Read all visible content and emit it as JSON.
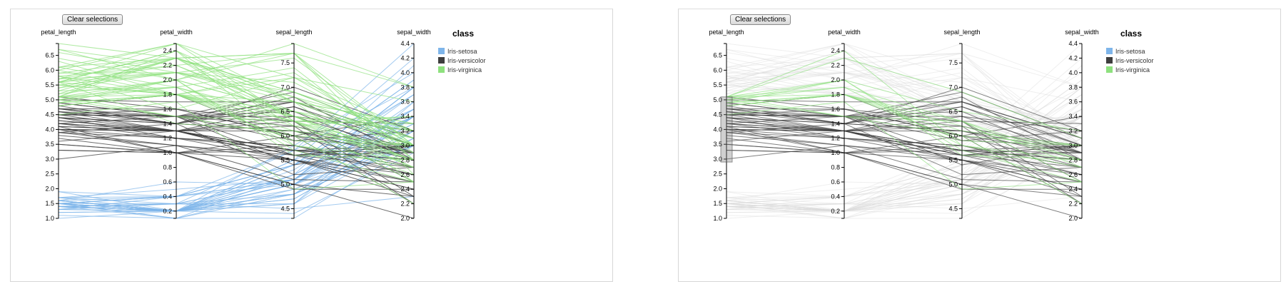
{
  "button_label": "Clear selections",
  "chart_data": [
    {
      "type": "parallel-coordinates",
      "dimensions": [
        {
          "name": "petal_length",
          "domain": [
            1.0,
            6.9
          ],
          "ticks": [
            1.0,
            1.5,
            2.0,
            2.5,
            3.0,
            3.5,
            4.0,
            4.5,
            5.0,
            5.5,
            6.0,
            6.5
          ]
        },
        {
          "name": "petal_width",
          "domain": [
            0.1,
            2.5
          ],
          "ticks": [
            0.2,
            0.4,
            0.6,
            0.8,
            1.0,
            1.2,
            1.4,
            1.6,
            1.8,
            2.0,
            2.2,
            2.4
          ]
        },
        {
          "name": "sepal_length",
          "domain": [
            4.3,
            7.9
          ],
          "ticks": [
            4.5,
            5.0,
            5.5,
            6.0,
            6.5,
            7.0,
            7.5
          ]
        },
        {
          "name": "sepal_width",
          "domain": [
            2.0,
            4.4
          ],
          "ticks": [
            2.0,
            2.2,
            2.4,
            2.6,
            2.8,
            3.0,
            3.2,
            3.4,
            3.6,
            3.8,
            4.0,
            4.2,
            4.4
          ]
        }
      ],
      "legend": {
        "title": "class",
        "placement": "top-right",
        "entries": [
          {
            "name": "Iris-setosa",
            "color": "#7eb5ea"
          },
          {
            "name": "Iris-versicolor",
            "color": "#3e3e3e"
          },
          {
            "name": "Iris-virginica",
            "color": "#8ee17e"
          }
        ]
      },
      "brush": null
    },
    {
      "type": "parallel-coordinates",
      "dimensions": [
        {
          "name": "petal_length",
          "domain": [
            1.0,
            6.9
          ],
          "ticks": [
            1.0,
            1.5,
            2.0,
            2.5,
            3.0,
            3.5,
            4.0,
            4.5,
            5.0,
            5.5,
            6.0,
            6.5
          ]
        },
        {
          "name": "petal_width",
          "domain": [
            0.1,
            2.5
          ],
          "ticks": [
            0.2,
            0.4,
            0.6,
            0.8,
            1.0,
            1.2,
            1.4,
            1.6,
            1.8,
            2.0,
            2.2,
            2.4
          ]
        },
        {
          "name": "sepal_length",
          "domain": [
            4.3,
            7.9
          ],
          "ticks": [
            4.5,
            5.0,
            5.5,
            6.0,
            6.5,
            7.0,
            7.5
          ]
        },
        {
          "name": "sepal_width",
          "domain": [
            2.0,
            4.4
          ],
          "ticks": [
            2.0,
            2.2,
            2.4,
            2.6,
            2.8,
            3.0,
            3.2,
            3.4,
            3.6,
            3.8,
            4.0,
            4.2,
            4.4
          ]
        }
      ],
      "legend": {
        "title": "class",
        "placement": "top-right",
        "entries": [
          {
            "name": "Iris-setosa",
            "color": "#7eb5ea"
          },
          {
            "name": "Iris-versicolor",
            "color": "#3e3e3e"
          },
          {
            "name": "Iris-virginica",
            "color": "#8ee17e"
          }
        ]
      },
      "brush": {
        "dimension": "petal_length",
        "range": [
          2.9,
          5.1
        ]
      }
    }
  ],
  "records": [
    {
      "class": "Iris-setosa",
      "v": [
        [
          1.4,
          0.2,
          5.1,
          3.5
        ],
        [
          1.4,
          0.2,
          4.9,
          3.0
        ],
        [
          1.3,
          0.2,
          4.7,
          3.2
        ],
        [
          1.5,
          0.2,
          4.6,
          3.1
        ],
        [
          1.4,
          0.2,
          5.0,
          3.6
        ],
        [
          1.7,
          0.4,
          5.4,
          3.9
        ],
        [
          1.4,
          0.3,
          4.6,
          3.4
        ],
        [
          1.5,
          0.2,
          5.0,
          3.4
        ],
        [
          1.4,
          0.2,
          4.4,
          2.9
        ],
        [
          1.5,
          0.1,
          4.9,
          3.1
        ],
        [
          1.5,
          0.2,
          5.4,
          3.7
        ],
        [
          1.6,
          0.2,
          4.8,
          3.4
        ],
        [
          1.4,
          0.1,
          4.8,
          3.0
        ],
        [
          1.1,
          0.1,
          4.3,
          3.0
        ],
        [
          1.2,
          0.2,
          5.8,
          4.0
        ],
        [
          1.5,
          0.4,
          5.7,
          4.4
        ],
        [
          1.3,
          0.4,
          5.4,
          3.9
        ],
        [
          1.4,
          0.3,
          5.1,
          3.5
        ],
        [
          1.7,
          0.3,
          5.7,
          3.8
        ],
        [
          1.5,
          0.3,
          5.1,
          3.8
        ],
        [
          1.7,
          0.2,
          5.4,
          3.4
        ],
        [
          1.5,
          0.4,
          5.1,
          3.7
        ],
        [
          1.0,
          0.2,
          4.6,
          3.6
        ],
        [
          1.7,
          0.5,
          5.1,
          3.3
        ],
        [
          1.9,
          0.2,
          4.8,
          3.4
        ],
        [
          1.6,
          0.2,
          5.0,
          3.0
        ],
        [
          1.6,
          0.4,
          5.0,
          3.4
        ],
        [
          1.5,
          0.2,
          5.2,
          3.5
        ],
        [
          1.4,
          0.2,
          5.2,
          3.4
        ],
        [
          1.6,
          0.2,
          4.7,
          3.2
        ],
        [
          1.6,
          0.2,
          4.8,
          3.1
        ],
        [
          1.5,
          0.4,
          5.4,
          3.4
        ],
        [
          1.5,
          0.1,
          5.2,
          4.1
        ],
        [
          1.4,
          0.2,
          5.5,
          4.2
        ],
        [
          1.2,
          0.2,
          5.0,
          3.2
        ],
        [
          1.3,
          0.2,
          5.5,
          3.5
        ],
        [
          1.3,
          0.3,
          4.5,
          2.3
        ],
        [
          1.6,
          0.6,
          5.0,
          3.5
        ],
        [
          1.9,
          0.4,
          5.1,
          3.8
        ],
        [
          1.4,
          0.3,
          4.8,
          3.0
        ],
        [
          1.6,
          0.2,
          5.1,
          3.8
        ],
        [
          1.4,
          0.2,
          5.3,
          3.7
        ],
        [
          1.5,
          0.2,
          5.0,
          3.3
        ]
      ]
    },
    {
      "class": "Iris-versicolor",
      "v": [
        [
          4.7,
          1.4,
          7.0,
          3.2
        ],
        [
          4.5,
          1.5,
          6.4,
          3.2
        ],
        [
          4.9,
          1.5,
          6.9,
          3.1
        ],
        [
          4.0,
          1.3,
          5.5,
          2.3
        ],
        [
          4.6,
          1.5,
          6.5,
          2.8
        ],
        [
          4.5,
          1.3,
          5.7,
          2.8
        ],
        [
          4.7,
          1.6,
          6.3,
          3.3
        ],
        [
          3.3,
          1.0,
          4.9,
          2.4
        ],
        [
          4.6,
          1.3,
          6.6,
          2.9
        ],
        [
          3.9,
          1.4,
          5.2,
          2.7
        ],
        [
          3.5,
          1.0,
          5.0,
          2.0
        ],
        [
          4.2,
          1.5,
          5.9,
          3.0
        ],
        [
          4.0,
          1.0,
          6.0,
          2.2
        ],
        [
          4.7,
          1.4,
          6.1,
          2.9
        ],
        [
          3.6,
          1.3,
          5.6,
          2.9
        ],
        [
          4.4,
          1.4,
          6.7,
          3.1
        ],
        [
          4.5,
          1.5,
          5.6,
          3.0
        ],
        [
          4.1,
          1.0,
          5.8,
          2.7
        ],
        [
          4.5,
          1.5,
          6.2,
          2.2
        ],
        [
          3.9,
          1.1,
          5.6,
          2.5
        ],
        [
          4.8,
          1.8,
          5.9,
          3.2
        ],
        [
          4.0,
          1.3,
          6.1,
          2.8
        ],
        [
          4.9,
          1.5,
          6.3,
          2.5
        ],
        [
          4.3,
          1.3,
          6.4,
          2.9
        ],
        [
          4.4,
          1.4,
          6.6,
          3.0
        ],
        [
          4.8,
          1.4,
          6.8,
          2.8
        ],
        [
          5.0,
          1.7,
          6.7,
          3.0
        ],
        [
          4.5,
          1.5,
          6.0,
          2.9
        ],
        [
          3.5,
          1.0,
          5.7,
          2.6
        ],
        [
          3.8,
          1.1,
          5.5,
          2.4
        ],
        [
          3.7,
          1.0,
          5.5,
          2.4
        ],
        [
          3.9,
          1.2,
          5.8,
          2.7
        ],
        [
          5.1,
          1.6,
          6.0,
          2.7
        ],
        [
          4.5,
          1.5,
          5.4,
          3.0
        ],
        [
          4.5,
          1.6,
          6.0,
          3.4
        ],
        [
          4.7,
          1.5,
          6.7,
          3.1
        ],
        [
          4.4,
          1.3,
          6.3,
          2.3
        ],
        [
          4.1,
          1.3,
          5.6,
          3.0
        ],
        [
          4.0,
          1.3,
          5.5,
          2.5
        ],
        [
          4.4,
          1.2,
          5.5,
          2.6
        ],
        [
          4.6,
          1.4,
          6.1,
          3.0
        ],
        [
          4.0,
          1.2,
          5.8,
          2.6
        ],
        [
          3.3,
          1.0,
          5.0,
          2.3
        ],
        [
          4.2,
          1.3,
          5.6,
          2.7
        ],
        [
          4.2,
          1.2,
          5.7,
          3.0
        ],
        [
          4.2,
          1.3,
          5.7,
          2.9
        ],
        [
          4.3,
          1.3,
          6.2,
          2.9
        ],
        [
          3.0,
          1.1,
          5.1,
          2.5
        ],
        [
          4.1,
          1.3,
          5.7,
          2.8
        ]
      ]
    },
    {
      "class": "Iris-virginica",
      "v": [
        [
          6.0,
          2.5,
          6.3,
          3.3
        ],
        [
          5.1,
          1.9,
          5.8,
          2.7
        ],
        [
          5.9,
          2.1,
          7.1,
          3.0
        ],
        [
          5.6,
          1.8,
          6.3,
          2.9
        ],
        [
          5.8,
          2.2,
          6.5,
          3.0
        ],
        [
          6.6,
          2.1,
          7.6,
          3.0
        ],
        [
          4.5,
          1.7,
          4.9,
          2.5
        ],
        [
          6.3,
          1.8,
          7.3,
          2.9
        ],
        [
          5.8,
          1.8,
          6.7,
          2.5
        ],
        [
          6.1,
          2.5,
          7.2,
          3.6
        ],
        [
          5.1,
          2.0,
          6.5,
          3.2
        ],
        [
          5.3,
          1.9,
          6.4,
          2.7
        ],
        [
          5.5,
          2.1,
          6.8,
          3.0
        ],
        [
          5.0,
          2.0,
          5.7,
          2.5
        ],
        [
          5.1,
          2.4,
          5.8,
          2.8
        ],
        [
          5.3,
          2.3,
          6.4,
          3.2
        ],
        [
          5.5,
          1.8,
          6.5,
          3.0
        ],
        [
          6.7,
          2.2,
          7.7,
          3.8
        ],
        [
          6.9,
          2.3,
          7.7,
          2.6
        ],
        [
          5.0,
          1.5,
          6.0,
          2.2
        ],
        [
          5.7,
          2.3,
          6.9,
          3.2
        ],
        [
          4.9,
          2.0,
          5.6,
          2.8
        ],
        [
          6.7,
          2.0,
          7.7,
          2.8
        ],
        [
          4.9,
          1.8,
          6.3,
          2.7
        ],
        [
          5.7,
          2.1,
          6.7,
          3.3
        ],
        [
          6.0,
          1.8,
          7.2,
          3.2
        ],
        [
          4.8,
          1.8,
          6.2,
          2.8
        ],
        [
          4.9,
          1.8,
          6.1,
          3.0
        ],
        [
          5.6,
          2.1,
          6.4,
          2.8
        ],
        [
          5.8,
          1.6,
          7.2,
          3.0
        ],
        [
          6.1,
          1.9,
          7.4,
          2.8
        ],
        [
          6.4,
          2.0,
          7.9,
          3.8
        ],
        [
          5.6,
          2.2,
          6.4,
          2.8
        ],
        [
          5.1,
          1.5,
          6.3,
          2.8
        ],
        [
          5.6,
          1.4,
          6.1,
          2.6
        ],
        [
          6.1,
          2.3,
          7.7,
          3.0
        ],
        [
          5.6,
          2.4,
          6.3,
          3.4
        ],
        [
          5.5,
          1.8,
          6.4,
          3.1
        ],
        [
          4.8,
          1.8,
          6.0,
          3.0
        ],
        [
          5.4,
          2.1,
          6.9,
          3.1
        ],
        [
          5.6,
          2.4,
          6.7,
          3.1
        ],
        [
          5.1,
          2.3,
          6.9,
          3.1
        ],
        [
          5.9,
          2.3,
          6.8,
          3.2
        ],
        [
          5.7,
          2.5,
          6.7,
          3.3
        ],
        [
          5.2,
          2.3,
          6.7,
          3.0
        ],
        [
          5.0,
          1.9,
          6.3,
          2.5
        ],
        [
          5.2,
          2.0,
          6.5,
          3.0
        ],
        [
          5.4,
          2.3,
          6.2,
          3.4
        ],
        [
          5.1,
          1.8,
          5.9,
          3.0
        ]
      ]
    }
  ]
}
